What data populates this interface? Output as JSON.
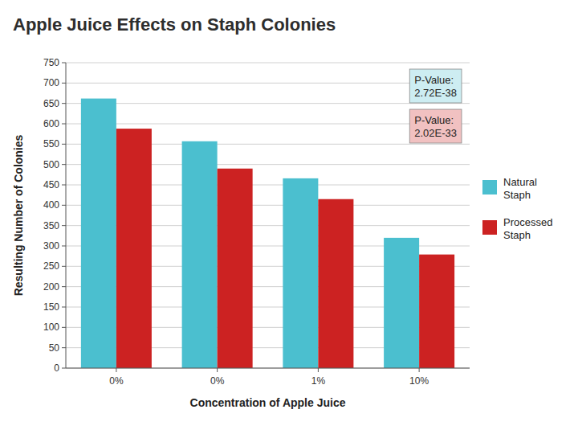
{
  "chart_data": {
    "type": "bar",
    "title": "Apple Juice Effects on Staph Colonies",
    "categories": [
      "0%",
      "0%",
      "1%",
      "10%"
    ],
    "series": [
      {
        "name": "Natural\nStaph",
        "color": "#4BBFCF",
        "values": [
          662,
          557,
          466,
          320
        ]
      },
      {
        "name": "Processed\nStaph",
        "color": "#CC2222",
        "values": [
          588,
          490,
          415,
          279
        ]
      }
    ],
    "xlabel": "Concentration of Apple Juice",
    "ylabel": "Resulting Number of Colonies",
    "ylim": [
      0,
      750
    ],
    "yticks": [
      0,
      50,
      100,
      150,
      200,
      250,
      300,
      350,
      400,
      450,
      500,
      550,
      600,
      650,
      700,
      750
    ],
    "grid": true,
    "legend": "right",
    "annotations": [
      "P-Value:\n2.72E-38",
      "P-Value:\n2.02E-33"
    ]
  }
}
